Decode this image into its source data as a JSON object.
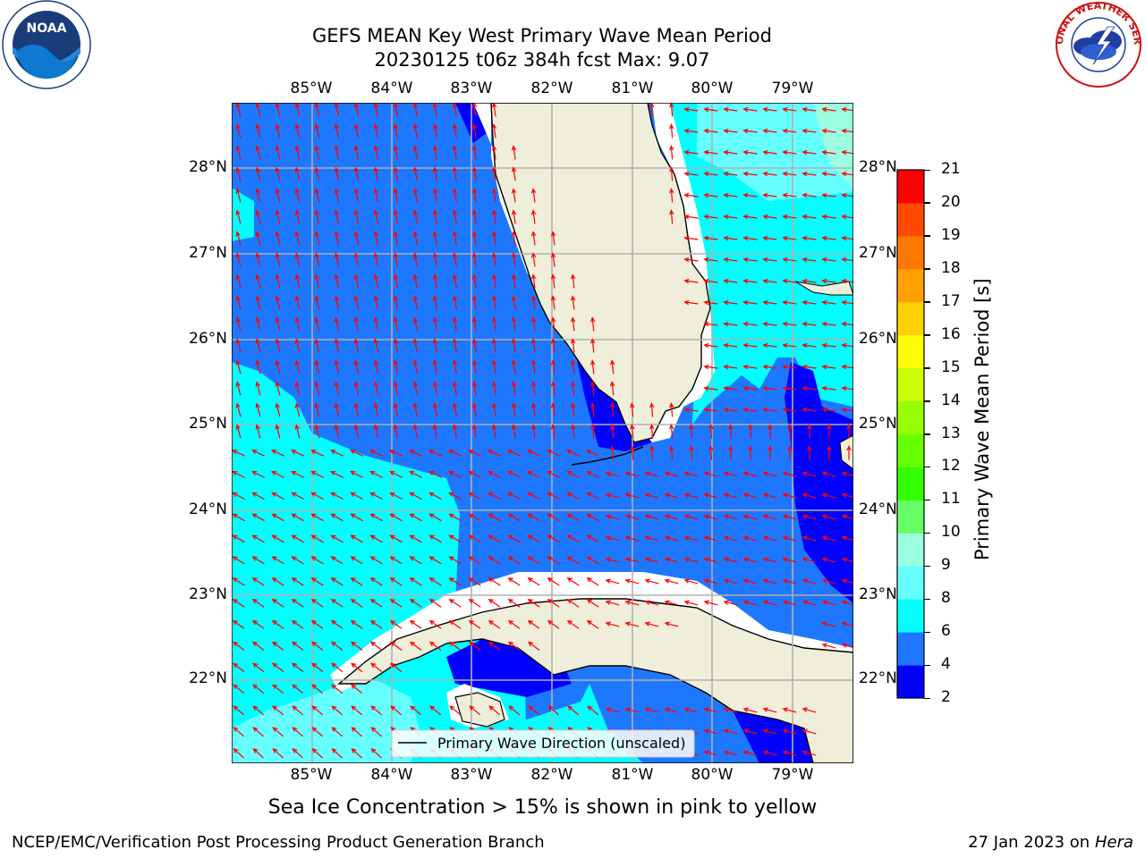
{
  "title_line1": "GEFS MEAN Key West Primary Wave Mean Period",
  "title_line2": "20230125 t06z 384h fcst   Max: 9.07",
  "lon_labels": [
    "85°W",
    "84°W",
    "83°W",
    "82°W",
    "81°W",
    "80°W",
    "79°W"
  ],
  "lat_labels": [
    "28°N",
    "27°N",
    "26°N",
    "25°N",
    "24°N",
    "23°N",
    "22°N"
  ],
  "legend_label": "Primary Wave Direction (unscaled)",
  "colorbar": {
    "title": "Primary Wave Mean Period [s]",
    "levels": [
      2,
      4,
      6,
      8,
      9,
      10,
      11,
      12,
      13,
      14,
      15,
      16,
      17,
      18,
      19,
      20,
      21
    ],
    "tick_labels": [
      "2",
      "4",
      "6",
      "8",
      "9",
      "10",
      "11",
      "12",
      "13",
      "14",
      "15",
      "16",
      "17",
      "18",
      "19",
      "20",
      "21"
    ],
    "colors": [
      "#0000ff",
      "#1e78ff",
      "#00ffff",
      "#66ffff",
      "#99ffe0",
      "#66ff66",
      "#33ff00",
      "#66ff00",
      "#99ff00",
      "#ccff00",
      "#ffff00",
      "#ffd000",
      "#ffa000",
      "#ff7800",
      "#ff4800",
      "#ff0000"
    ]
  },
  "colors": {
    "land": "#efeedb",
    "water_4_6": "#1e78ff",
    "water_2_4": "#0000ff",
    "water_6_8": "#00ffff",
    "water_8_9": "#66ffff",
    "water_9_10": "#99ffe0",
    "arrow": "#ff0000"
  },
  "caption": "Sea Ice Concentration > 15% is shown in pink to yellow",
  "footer_left": "NCEP/EMC/Verification Post Processing Product Generation Branch",
  "footer_right_prefix": "27 Jan 2023 on ",
  "footer_right_host": "Hera",
  "logos": {
    "left": {
      "text": "NOAA"
    },
    "right": {
      "text": "NATIONAL WEATHER SERVICE"
    }
  }
}
